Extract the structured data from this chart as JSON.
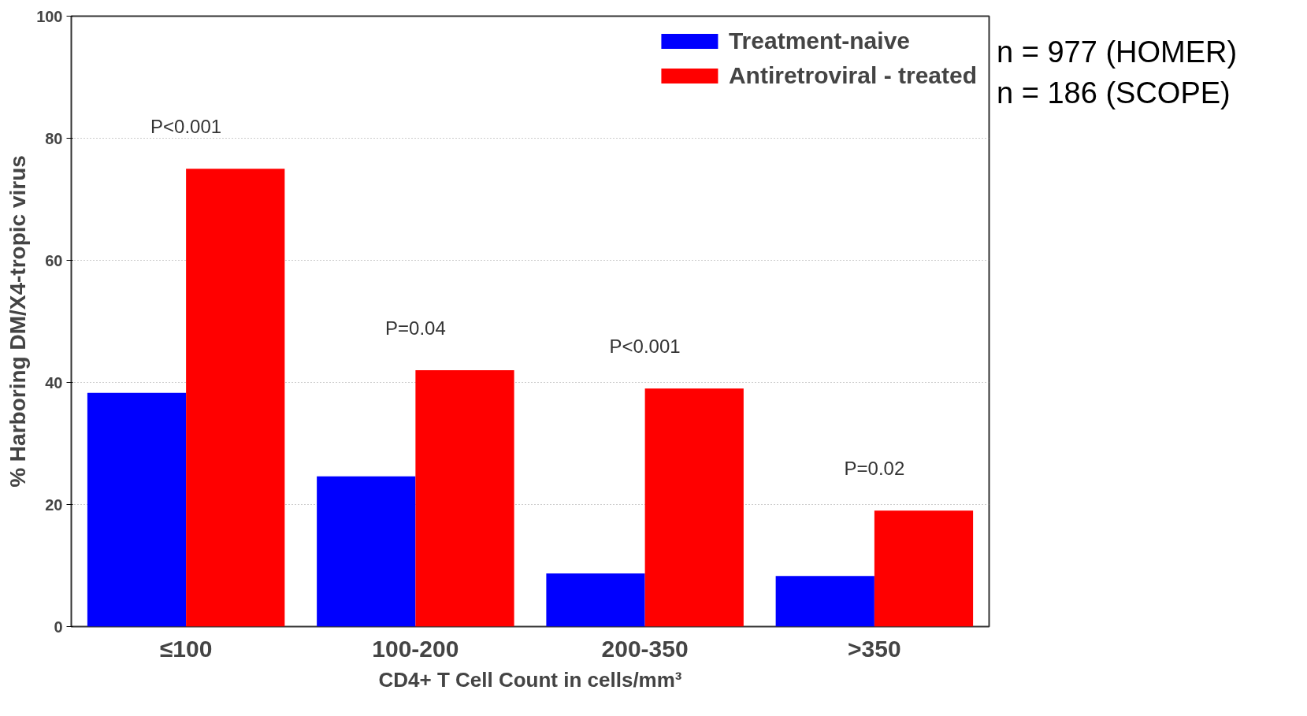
{
  "chart_data": {
    "type": "bar",
    "xlabel": "CD4+ T Cell Count in cells/mm³",
    "ylabel": "% Harboring DM/X4-tropic virus",
    "categories": [
      "≤100",
      "100-200",
      "200-350",
      ">350"
    ],
    "series": [
      {
        "name": "Treatment-naive",
        "color": "#0000ff",
        "values": [
          38.3,
          24.6,
          8.7,
          8.3
        ]
      },
      {
        "name": "Antiretroviral - treated",
        "color": "#ff0000",
        "values": [
          75,
          42,
          39,
          19
        ]
      }
    ],
    "ylim": [
      0,
      100
    ],
    "yticks": [
      0,
      20,
      40,
      60,
      80,
      100
    ],
    "grid": "y",
    "legend": "top right",
    "annotations": [
      "P<0.001",
      "P=0.04",
      "P<0.001",
      "P=0.02",
      "n = 977 (HOMER)",
      "n = 186 (SCOPE)"
    ]
  }
}
